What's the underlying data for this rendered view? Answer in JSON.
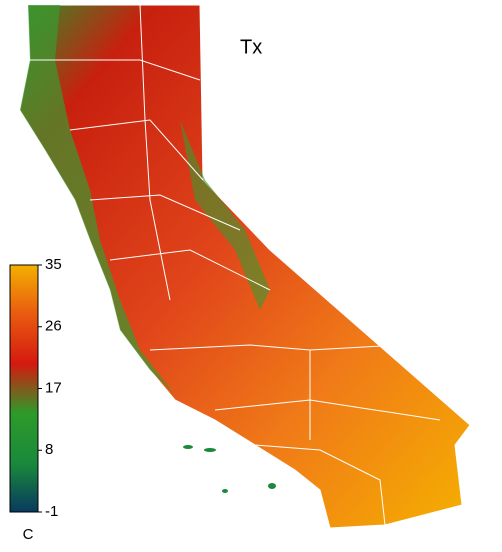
{
  "title": "Tx",
  "colorbar": {
    "lim": [
      -1,
      35
    ],
    "ticks": [
      -1,
      8,
      17,
      26,
      35
    ],
    "unit": "C",
    "colors": [
      "#083a5e",
      "#1a8a3a",
      "#2e9a2a",
      "#d41a10",
      "#ea5a10",
      "#f3b000"
    ]
  }
}
